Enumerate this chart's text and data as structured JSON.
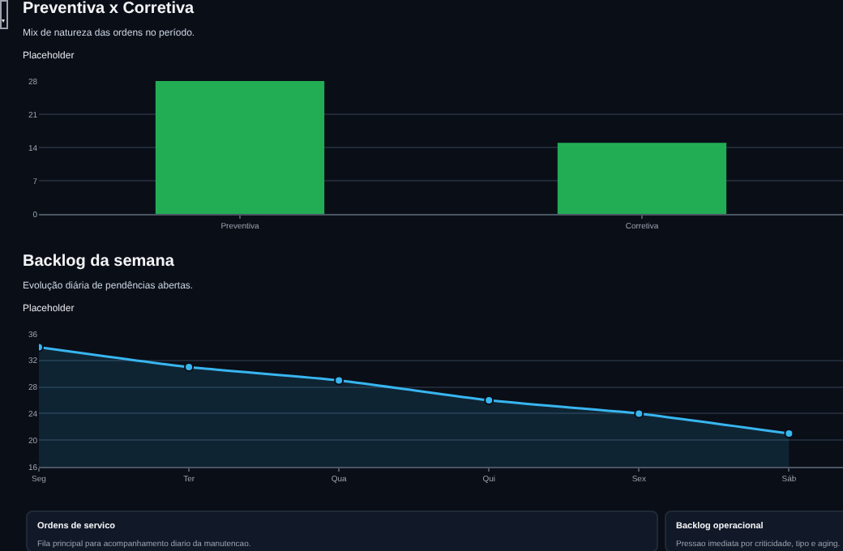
{
  "chart_data": [
    {
      "type": "bar",
      "title": "Preventiva x Corretiva",
      "subtitle": "Mix de natureza das ordens no período.",
      "annotations": [
        "Placeholder"
      ],
      "categories": [
        "Preventiva",
        "Corretiva"
      ],
      "values": [
        28,
        15
      ],
      "color": "#22ad55",
      "ylim": [
        0,
        28
      ],
      "yticks": [
        0,
        7,
        14,
        21,
        28
      ],
      "grid": "y",
      "legend": false
    },
    {
      "type": "area",
      "title": "Backlog da semana",
      "subtitle": "Evolução diária de pendências abertas.",
      "annotations": [
        "Placeholder"
      ],
      "categories": [
        "Seg",
        "Ter",
        "Qua",
        "Qui",
        "Sex",
        "Sáb"
      ],
      "values": [
        34,
        31,
        29,
        26,
        24,
        21
      ],
      "color": "#38b6f0",
      "ylim": [
        16,
        36
      ],
      "yticks": [
        16,
        20,
        24,
        28,
        32,
        36
      ],
      "grid": "y",
      "marker": "circle",
      "legend": false
    },
    {
      "type": "other",
      "title": "Ordens de servico",
      "subtitle": "Fila principal para acompanhamento diario da manutencao."
    },
    {
      "type": "other",
      "title": "Backlog operacional",
      "subtitle": "Pressao imediata por criticidade, tipo e aging."
    }
  ]
}
